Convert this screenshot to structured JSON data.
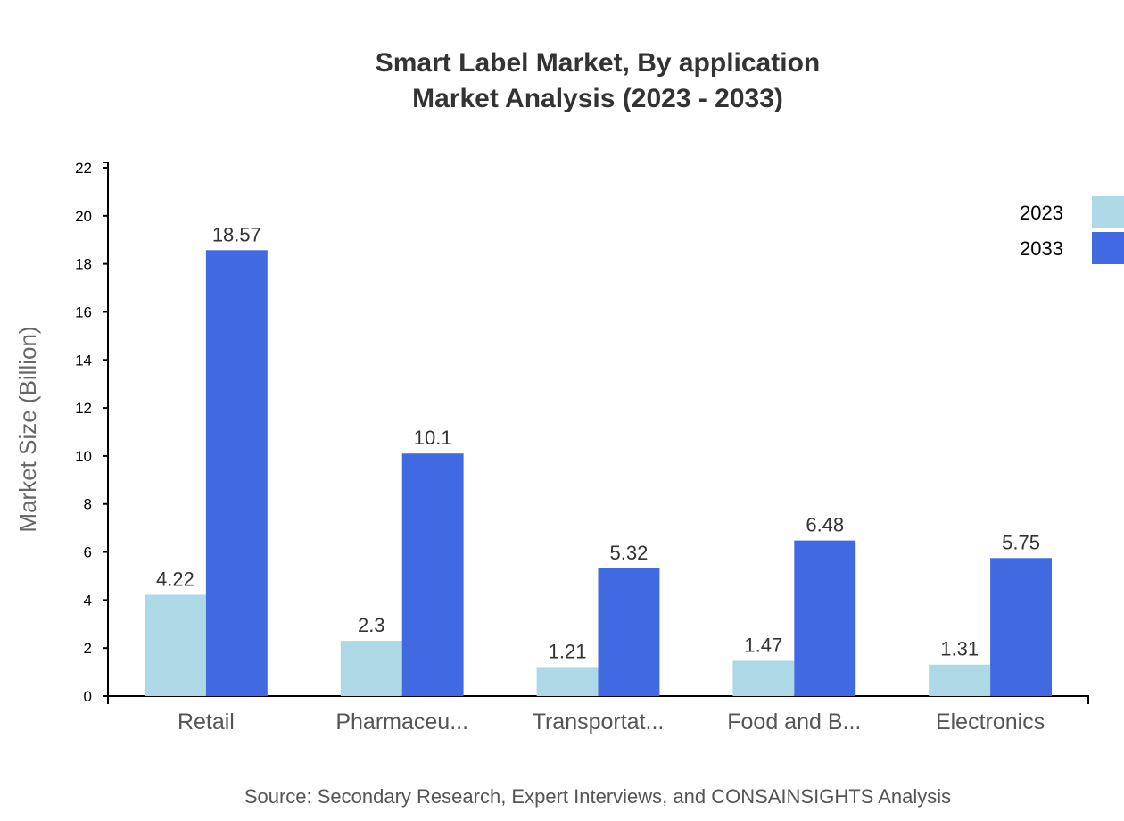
{
  "chart_data": {
    "type": "bar",
    "title": "Smart Label Market, By application",
    "subtitle": "Market Analysis (2023 - 2033)",
    "ylabel": "Market Size (Billion)",
    "xlabel": "",
    "source": "Source: Secondary Research, Expert Interviews, and CONSAINSIGHTS Analysis",
    "categories": [
      "Retail",
      "Pharmaceu...",
      "Transportat...",
      "Food and B...",
      "Electronics"
    ],
    "series": [
      {
        "name": "2023",
        "color": "#add8e6",
        "values": [
          4.22,
          2.3,
          1.21,
          1.47,
          1.31
        ]
      },
      {
        "name": "2033",
        "color": "#4169e1",
        "values": [
          18.57,
          10.1,
          5.32,
          6.48,
          5.75
        ]
      }
    ],
    "ylim": [
      0,
      22
    ],
    "yticks": [
      0,
      2,
      4,
      6,
      8,
      10,
      12,
      14,
      16,
      18,
      20,
      22
    ],
    "grid": false,
    "legend": "top-right"
  }
}
